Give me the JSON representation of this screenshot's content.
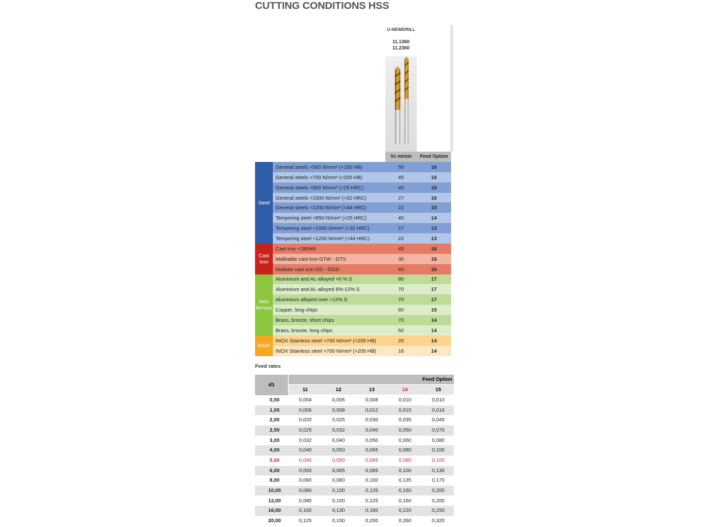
{
  "title": "CUTTING CONDITIONS HSS",
  "product": {
    "name": "U-NEWDRILL",
    "codes": [
      "11.1360",
      "11.2360"
    ],
    "columns": [
      "Vc m/min",
      "Feed Option"
    ]
  },
  "groups": [
    {
      "name": "Steel",
      "rows": [
        {
          "material": "General steels <500 N/mm² (<150 HB)",
          "vc": 50,
          "feed": 16
        },
        {
          "material": "General steels <700 N/mm² (<205 HB)",
          "vc": 45,
          "feed": 16
        },
        {
          "material": "General steels <850 N/mm² (<25 HRC)",
          "vc": 40,
          "feed": 16
        },
        {
          "material": "General steels <1000 N/mm² (<32 HRC)",
          "vc": 27,
          "feed": 16
        },
        {
          "material": "General steels <1200 N/mm² (<44 HRC)",
          "vc": 22,
          "feed": 15
        },
        {
          "material": "Tempering steel <850 N/mm² (<25 HRC)",
          "vc": 40,
          "feed": 14
        },
        {
          "material": "Tempering steel <1000 N/mm² (<32 HRC)",
          "vc": 27,
          "feed": 13
        },
        {
          "material": "Tempering steel <1200 N/mm² (<44 HRC)",
          "vc": 22,
          "feed": 13
        }
      ]
    },
    {
      "name": "Cast iron",
      "rows": [
        {
          "material": "Cast iron <180HB",
          "vc": 45,
          "feed": 16
        },
        {
          "material": "Malleable cast iron GTW - GTS",
          "vc": 30,
          "feed": 16
        },
        {
          "material": "Nodular cast iron GG - GGG",
          "vc": 40,
          "feed": 16
        }
      ]
    },
    {
      "name": "Non ferrous",
      "rows": [
        {
          "material": "Aluminium and AL-alloyed <6 % S",
          "vc": 80,
          "feed": 17
        },
        {
          "material": "Aluminium and AL-alloyed 6%-12% S",
          "vc": 70,
          "feed": 17
        },
        {
          "material": "Aluminium alloyed over >12% S",
          "vc": 70,
          "feed": 17
        },
        {
          "material": "Copper, long chips",
          "vc": 80,
          "feed": 15
        },
        {
          "material": "Brass, bronze, short chips",
          "vc": 70,
          "feed": 14
        },
        {
          "material": "Brass, bronze, long chips",
          "vc": 50,
          "feed": 14
        }
      ]
    },
    {
      "name": "INOX",
      "rows": [
        {
          "material": "INOX Stainless steel <700 N/mm² (<205 HB)",
          "vc": 20,
          "feed": 14
        },
        {
          "material": "INOX Stainless steel >700 N/mm² (>205 HB)",
          "vc": 16,
          "feed": 14
        }
      ]
    }
  ],
  "feed_rates": {
    "title": "Feed rates",
    "d1_header": "d1",
    "group_header": "Feed Option",
    "options": [
      11,
      12,
      13,
      14,
      15
    ],
    "rows": [
      {
        "d1": "0,50",
        "values": [
          "0,004",
          "0,006",
          "0,008",
          "0,010",
          "0,010"
        ]
      },
      {
        "d1": "1,00",
        "values": [
          "0,006",
          "0,008",
          "0,012",
          "0,015",
          "0,016"
        ]
      },
      {
        "d1": "2,00",
        "values": [
          "0,020",
          "0,025",
          "0,030",
          "0,035",
          "0,045"
        ]
      },
      {
        "d1": "2,50",
        "values": [
          "0,025",
          "0,032",
          "0,040",
          "0,050",
          "0,070"
        ]
      },
      {
        "d1": "3,00",
        "values": [
          "0,032",
          "0,040",
          "0,050",
          "0,060",
          "0,080"
        ]
      },
      {
        "d1": "4,00",
        "values": [
          "0,040",
          "0,050",
          "0,065",
          "0,080",
          "0,100"
        ]
      },
      {
        "d1": "5,00",
        "values": [
          "0,040",
          "0,050",
          "0,065",
          "0,080",
          "0,100"
        ]
      },
      {
        "d1": "6,00",
        "values": [
          "0,050",
          "0,065",
          "0,085",
          "0,100",
          "0,130"
        ]
      },
      {
        "d1": "8,00",
        "values": [
          "0,060",
          "0,080",
          "0,100",
          "0,135",
          "0,170"
        ]
      },
      {
        "d1": "10,00",
        "values": [
          "0,080",
          "0,100",
          "0,125",
          "0,160",
          "0,200"
        ]
      },
      {
        "d1": "12,00",
        "values": [
          "0,080",
          "0,100",
          "0,125",
          "0,160",
          "0,200"
        ]
      },
      {
        "d1": "16,00",
        "values": [
          "0,100",
          "0,130",
          "0,160",
          "0,220",
          "0,250"
        ]
      },
      {
        "d1": "20,00",
        "values": [
          "0,125",
          "0,150",
          "0,200",
          "0,260",
          "0,320"
        ]
      }
    ]
  }
}
